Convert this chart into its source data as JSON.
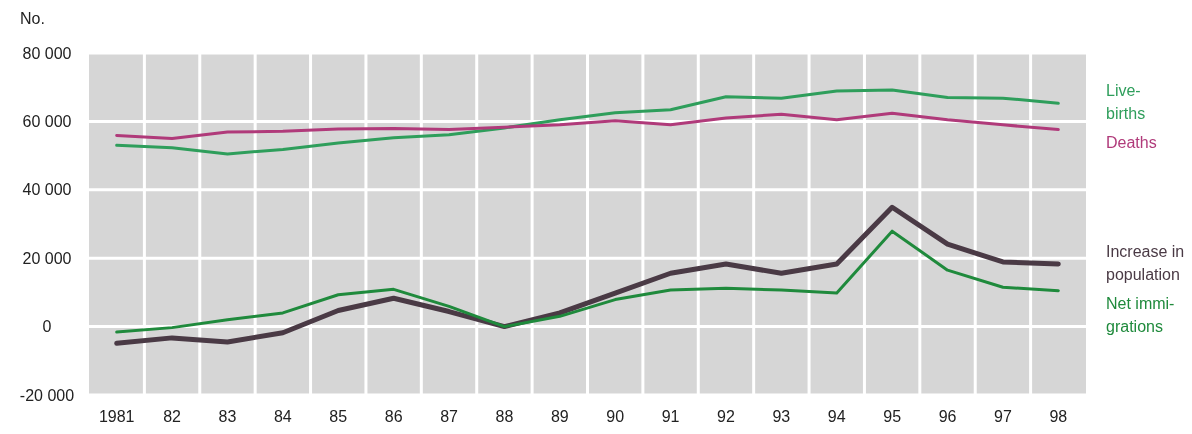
{
  "chart_data": {
    "type": "line",
    "ylabel": "No.",
    "categories": [
      "1981",
      "82",
      "83",
      "84",
      "85",
      "86",
      "87",
      "88",
      "89",
      "90",
      "91",
      "92",
      "93",
      "94",
      "95",
      "96",
      "97",
      "98"
    ],
    "series": [
      {
        "name": "Live-\nbirths",
        "color": "#2e9e5b",
        "values": [
          53000,
          52300,
          50500,
          51800,
          53700,
          55200,
          56100,
          58100,
          60500,
          62500,
          63400,
          67200,
          66800,
          68900,
          69200,
          67000,
          66800,
          65300
        ]
      },
      {
        "name": "Deaths",
        "color": "#b03a7a",
        "values": [
          55900,
          55000,
          56900,
          57100,
          57800,
          57900,
          57600,
          58300,
          59000,
          60200,
          59000,
          61000,
          62100,
          60500,
          62400,
          60500,
          59000,
          57600
        ]
      },
      {
        "name": "Increase in\npopulation",
        "color": "#4a3a45",
        "values": [
          -4900,
          -3300,
          -4500,
          -1800,
          4700,
          8300,
          4400,
          0,
          4000,
          9800,
          15600,
          18300,
          15600,
          18300,
          34900,
          24100,
          18900,
          18300
        ]
      },
      {
        "name": "Net immi-\ngrations",
        "color": "#1f8a3c",
        "values": [
          -1600,
          -300,
          2000,
          4000,
          9300,
          10900,
          5900,
          0,
          3000,
          7900,
          10700,
          11200,
          10700,
          9800,
          27900,
          16500,
          11500,
          10500
        ]
      }
    ],
    "ylim": [
      -20000,
      80000
    ],
    "yticks": [
      {
        "value": -20000,
        "label": "-20 000"
      },
      {
        "value": 0,
        "label": "0"
      },
      {
        "value": 20000,
        "label": "20 000"
      },
      {
        "value": 40000,
        "label": "40 000"
      },
      {
        "value": 60000,
        "label": "60 000"
      },
      {
        "value": 80000,
        "label": "80 000"
      }
    ],
    "grid": true,
    "legend": "right",
    "line_style": "solid"
  }
}
